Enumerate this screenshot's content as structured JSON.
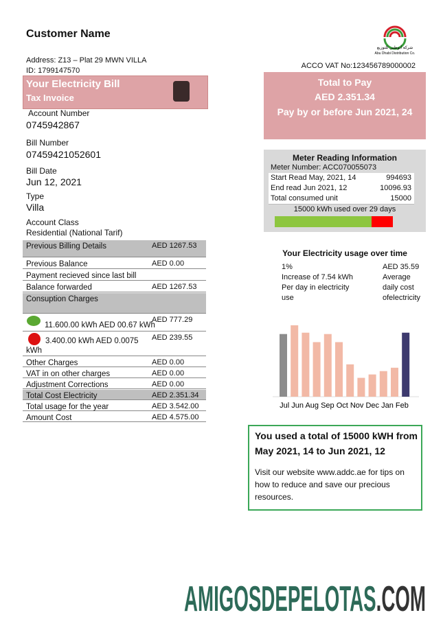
{
  "header": {
    "customer_name": "Customer Name",
    "address": "Address: Z13 – Plat 29 MWN VILLA",
    "id": "ID: 1799147570",
    "vat": "ACCO VAT No:123456789000002",
    "logo_arabic": "شركة أبوظبي للتوزيع",
    "logo_english": "Abu Dhabi Distribution Co."
  },
  "bill_box": {
    "title": "Your Electricity Bill",
    "subtitle": "Tax Invoice"
  },
  "fields": [
    {
      "label": "Account Number",
      "value": "0745942867"
    },
    {
      "label": "Bill Number",
      "value": "07459421052601"
    },
    {
      "label": "Bill Date",
      "value": "Jun 12, 2021"
    },
    {
      "label": "Type",
      "value": "Villa"
    },
    {
      "label": "Account Class",
      "value": "Residential (National Tarif)"
    }
  ],
  "total_box": {
    "title": "Total to Pay",
    "amount": "AED 2.351.34",
    "due": "Pay by or before Jun 2021, 24"
  },
  "meter": {
    "title": "Meter Reading Information",
    "number": "Meter Number: ACC070055073",
    "rows": [
      [
        "Start Read May, 2021, 14",
        "994693"
      ],
      [
        "End read Jun 2021, 12",
        "10096.93"
      ],
      [
        "Total consumed unit",
        "15000"
      ]
    ],
    "summary": "15000 kWh used over 29 days"
  },
  "billing_table": [
    {
      "label": "Previous Billing Details",
      "value": "AED 1267.53"
    },
    {
      "label": "Previous Balance",
      "value": "AED 0.00"
    },
    {
      "label": "Payment recieved since last bill"
    },
    {
      "label": "Balance forwarded",
      "value": "AED 1267.53"
    },
    {
      "label": "Consuption Charges"
    },
    {
      "label": "11.600.00 kWh AED 00.67 kWh",
      "value": "AED 777.29"
    },
    {
      "label": "3.400.00 kWh  AED 0.0075 kWh",
      "value": "AED 239.55"
    },
    {
      "label": "Other Charges",
      "value": "AED 0.00"
    },
    {
      "label": "VAT in on other charges",
      "value": "AED 0.00"
    },
    {
      "label": "Adjustment Corrections",
      "value": "AED 0.00"
    },
    {
      "label": "Total Cost Electricity",
      "value": "AED 2.351.34"
    },
    {
      "label": "Total usage for the year",
      "value": "AED 3.542.00"
    },
    {
      "label": "Amount Cost",
      "value": "AED 4.575.00"
    }
  ],
  "usage": {
    "title": "Your Electricity usage over time",
    "left": [
      "1%",
      "Increase of 7.54 kWh",
      "Per day in electricity",
      "use"
    ],
    "right": [
      "AED 35.59",
      "Average",
      "daily cost",
      "ofelectricity"
    ]
  },
  "usage_chart": {
    "type": "bar",
    "values": [
      93,
      106,
      95,
      81,
      93,
      81,
      48,
      28,
      33,
      38,
      43,
      95
    ],
    "colors": [
      "#8c8c8c",
      "#f2b9a6",
      "#f2b9a6",
      "#f2b9a6",
      "#f2b9a6",
      "#f2b9a6",
      "#f2b9a6",
      "#f2b9a6",
      "#f2b9a6",
      "#f2b9a6",
      "#f2b9a6",
      "#3d3a6e"
    ],
    "ylim": [
      0,
      110
    ],
    "x_label": "Jul Jun Aug Sep Oct Nov Dec Jan Feb"
  },
  "summary_box": {
    "headline": [
      "You used a total of 15000 kWH from",
      "May 2021, 14 to Jun 2021, 12"
    ],
    "body": [
      "Visit our website www.addc.ae for tips on",
      "how to reduce and save our precious",
      "resources."
    ]
  },
  "watermark": {
    "main": "AMIGOSDEPELOTAS",
    "suffix": ".COM"
  }
}
